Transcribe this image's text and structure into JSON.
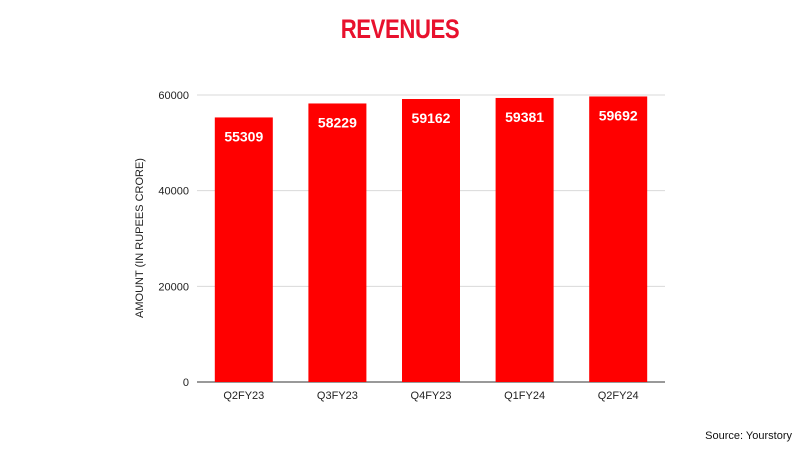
{
  "chart_data": {
    "type": "bar",
    "title": "REVENUES",
    "xlabel": "",
    "ylabel": "AMOUNT (IN RUPEES CRORE)",
    "categories": [
      "Q2FY23",
      "Q3FY23",
      "Q4FY23",
      "Q1FY24",
      "Q2FY24"
    ],
    "values": [
      55309,
      58229,
      59162,
      59381,
      59692
    ],
    "ylim": [
      0,
      60000
    ],
    "yticks": [
      0,
      20000,
      40000,
      60000
    ],
    "grid": true,
    "legend": "none",
    "bar_color": "#ff0000",
    "title_color": "#e8112d"
  },
  "source": "Source: Yourstory"
}
